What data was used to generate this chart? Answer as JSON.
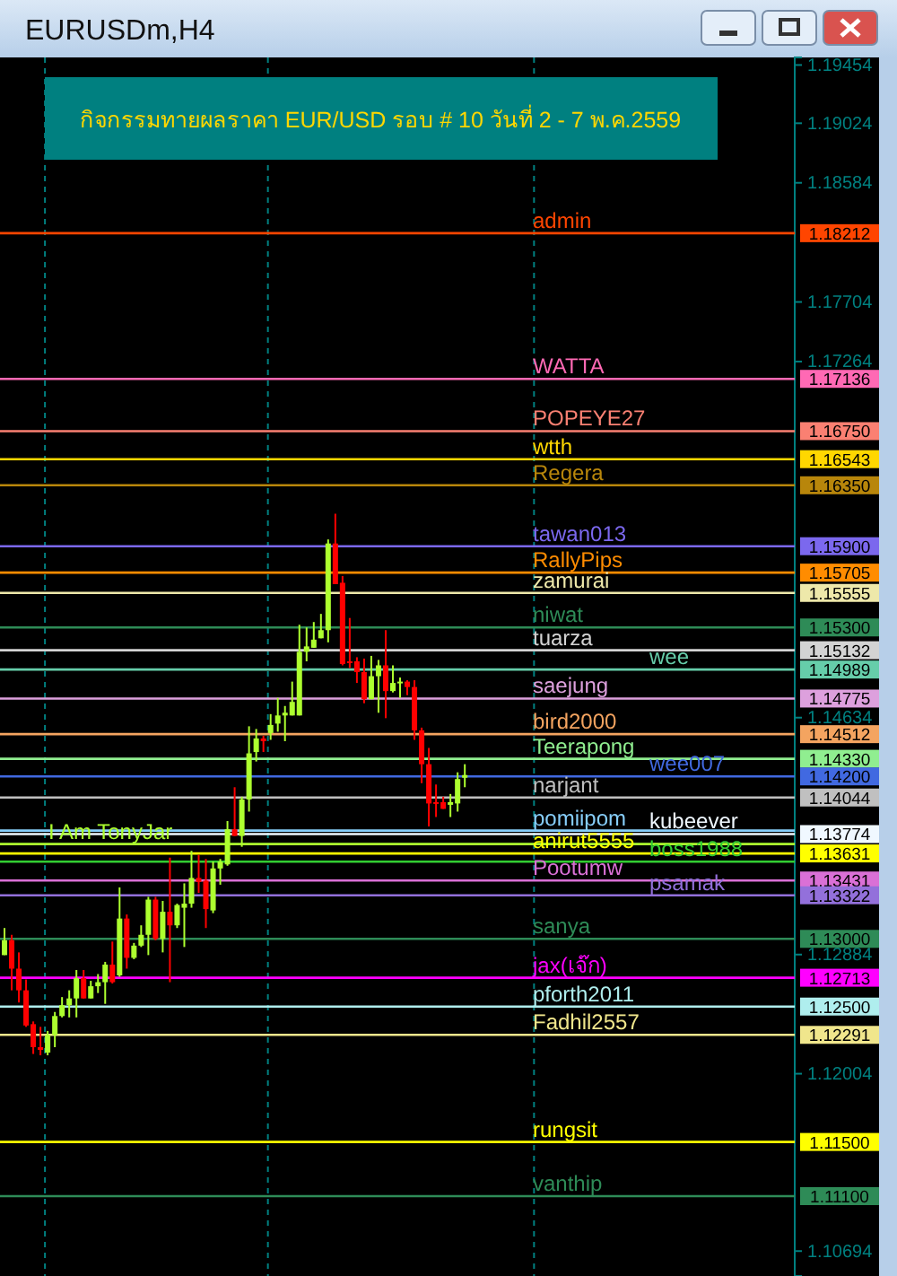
{
  "chart_data": {
    "type": "candlestick",
    "title": "กิจกรรมทายผลราคา EUR/USD รอบ # 10 วันที่ 2 - 7 พ.ค.2559",
    "subtitle": "EURUSDm,H4",
    "categories": [
      null,
      null,
      null,
      null,
      null,
      null,
      null,
      null,
      null,
      null,
      null,
      null,
      null,
      null,
      null,
      null,
      null,
      null,
      null,
      null,
      null,
      null,
      null,
      null,
      null,
      null,
      null,
      null,
      null,
      null,
      null,
      null,
      null,
      null,
      null,
      null,
      null,
      null,
      null,
      null,
      null,
      null,
      null,
      null,
      null,
      null,
      null,
      null,
      null,
      null,
      null,
      null,
      null,
      null,
      null,
      null,
      null,
      null,
      null,
      null,
      null,
      null,
      null,
      null,
      null,
      null,
      null,
      null,
      null,
      null,
      null,
      null,
      null,
      null,
      null,
      null,
      null,
      null,
      null,
      null,
      null,
      null,
      null,
      null,
      null,
      null,
      null,
      null,
      null,
      null,
      null,
      null,
      null,
      null,
      null,
      null,
      null,
      null,
      null,
      null,
      null,
      null,
      null,
      null,
      null,
      null,
      null,
      null,
      null,
      null
    ],
    "ohlc": [
      [
        1.1288,
        1.1308,
        1.1288,
        1.1299
      ],
      [
        1.1299,
        1.1303,
        1.1262,
        1.1278
      ],
      [
        1.1278,
        1.129,
        1.1253,
        1.1262
      ],
      [
        1.1262,
        1.127,
        1.1235,
        1.1236
      ],
      [
        1.1237,
        1.1239,
        1.1215,
        1.122
      ],
      [
        1.122,
        1.1235,
        1.1214,
        1.1218
      ],
      [
        1.1216,
        1.1232,
        1.1214,
        1.1229
      ],
      [
        1.1229,
        1.1246,
        1.122,
        1.1243
      ],
      [
        1.1243,
        1.1257,
        1.1242,
        1.1251
      ],
      [
        1.1251,
        1.1262,
        1.1242,
        1.1256
      ],
      [
        1.1256,
        1.1277,
        1.1242,
        1.1271
      ],
      [
        1.1271,
        1.1277,
        1.1256,
        1.1256
      ],
      [
        1.1256,
        1.1269,
        1.1256,
        1.1265
      ],
      [
        1.1265,
        1.1274,
        1.126,
        1.1268
      ],
      [
        1.1268,
        1.1283,
        1.1252,
        1.1281
      ],
      [
        1.1281,
        1.1298,
        1.1267,
        1.1268
      ],
      [
        1.1273,
        1.1338,
        1.1272,
        1.1315
      ],
      [
        1.1315,
        1.1318,
        1.1278,
        1.1286
      ],
      [
        1.1286,
        1.1297,
        1.1285,
        1.1295
      ],
      [
        1.1295,
        1.131,
        1.1294,
        1.1303
      ],
      [
        1.1303,
        1.1331,
        1.1288,
        1.1329
      ],
      [
        1.1329,
        1.1331,
        1.1299,
        1.13
      ],
      [
        1.13,
        1.1328,
        1.129,
        1.132
      ],
      [
        1.132,
        1.136,
        1.1268,
        1.131
      ],
      [
        1.131,
        1.1326,
        1.1308,
        1.1325
      ],
      [
        1.1323,
        1.1341,
        1.1294,
        1.1326
      ],
      [
        1.1326,
        1.1365,
        1.1323,
        1.1345
      ],
      [
        1.1345,
        1.1362,
        1.1334,
        1.1342
      ],
      [
        1.1343,
        1.1359,
        1.1308,
        1.1322
      ],
      [
        1.1321,
        1.1357,
        1.1319,
        1.1352
      ],
      [
        1.1352,
        1.1359,
        1.134,
        1.1357
      ],
      [
        1.1355,
        1.1387,
        1.1354,
        1.1381
      ],
      [
        1.1381,
        1.1412,
        1.1376,
        1.1376
      ],
      [
        1.1376,
        1.1405,
        1.1368,
        1.1403
      ],
      [
        1.1403,
        1.1457,
        1.1394,
        1.1437
      ],
      [
        1.1438,
        1.1455,
        1.1431,
        1.1448
      ],
      [
        1.1448,
        1.145,
        1.1438,
        1.1446
      ],
      [
        1.1452,
        1.1466,
        1.1447,
        1.1458
      ],
      [
        1.1459,
        1.1478,
        1.1453,
        1.1465
      ],
      [
        1.1465,
        1.1472,
        1.1446,
        1.1467
      ],
      [
        1.1465,
        1.149,
        1.1465,
        1.1475
      ],
      [
        1.1465,
        1.1532,
        1.1465,
        1.1512
      ],
      [
        1.1512,
        1.153,
        1.1505,
        1.1516
      ],
      [
        1.1515,
        1.1534,
        1.1515,
        1.1521
      ],
      [
        1.1522,
        1.154,
        1.1522,
        1.1528
      ],
      [
        1.1528,
        1.1595,
        1.1519,
        1.1592
      ],
      [
        1.1592,
        1.1614,
        1.1562,
        1.1562
      ],
      [
        1.1563,
        1.1568,
        1.1502,
        1.1503
      ],
      [
        1.1505,
        1.1537,
        1.15,
        1.1504
      ],
      [
        1.1505,
        1.1508,
        1.1489,
        1.1497
      ],
      [
        1.1497,
        1.1507,
        1.1474,
        1.1477
      ],
      [
        1.1477,
        1.1509,
        1.1477,
        1.1494
      ],
      [
        1.1494,
        1.1506,
        1.1467,
        1.1502
      ],
      [
        1.1502,
        1.1528,
        1.1463,
        1.1483
      ],
      [
        1.1483,
        1.1502,
        1.1482,
        1.1489
      ],
      [
        1.1489,
        1.1493,
        1.1478,
        1.149
      ],
      [
        1.149,
        1.1491,
        1.148,
        1.1486
      ],
      [
        1.1486,
        1.1491,
        1.1447,
        1.1454
      ],
      [
        1.1454,
        1.1456,
        1.1415,
        1.1429
      ],
      [
        1.1429,
        1.1441,
        1.1383,
        1.14
      ],
      [
        1.1401,
        1.1414,
        1.139,
        1.14
      ],
      [
        1.1401,
        1.1405,
        1.1396,
        1.1396
      ],
      [
        1.1399,
        1.1407,
        1.139,
        1.1401
      ],
      [
        1.14,
        1.1423,
        1.1394,
        1.1418
      ],
      [
        1.1419,
        1.1429,
        1.1412,
        1.1421
      ],
      null,
      null,
      null,
      null,
      null,
      null,
      null,
      null,
      null,
      null,
      null,
      null,
      null,
      null,
      null,
      null,
      null,
      null,
      null,
      null,
      null,
      null,
      null,
      null,
      null,
      null,
      null,
      null,
      null,
      null,
      null,
      null,
      null,
      null,
      null,
      null,
      null,
      null,
      null,
      null,
      null,
      null,
      null,
      null,
      null
    ],
    "ylim": [
      1.1051,
      1.1951
    ],
    "yticks": [
      1.19454,
      1.19024,
      1.18584,
      1.17704,
      1.17264,
      1.14634,
      1.12884,
      1.12004,
      1.10694
    ],
    "tick_labels": "y",
    "ref_lines": [
      {
        "axis": "y",
        "value": 1.18212,
        "label": "1.18212",
        "color": "#ff4500"
      },
      {
        "axis": "y",
        "value": 1.17136,
        "label": "1.17136",
        "color": "#ff69b4"
      },
      {
        "axis": "y",
        "value": 1.1675,
        "label": "1.16750",
        "color": "#fa8072"
      },
      {
        "axis": "y",
        "value": 1.16543,
        "label": "1.16543",
        "color": "#ffd700"
      },
      {
        "axis": "y",
        "value": 1.1635,
        "label": "1.16350",
        "color": "#b8860b"
      },
      {
        "axis": "y",
        "value": 1.159,
        "label": "1.15900",
        "color": "#7b68ee"
      },
      {
        "axis": "y",
        "value": 1.15705,
        "label": "1.15705",
        "color": "#ff8c00"
      },
      {
        "axis": "y",
        "value": 1.15555,
        "label": "1.15555",
        "color": "#eee8aa"
      },
      {
        "axis": "y",
        "value": 1.153,
        "label": "1.15300",
        "color": "#2e8b57"
      },
      {
        "axis": "y",
        "value": 1.15132,
        "label": "1.15132",
        "color": "#d3d3d3"
      },
      {
        "axis": "y",
        "value": 1.14989,
        "label": "1.14989",
        "color": "#66cdaa"
      },
      {
        "axis": "y",
        "value": 1.14775,
        "label": "1.14775",
        "color": "#dda0dd"
      },
      {
        "axis": "y",
        "value": 1.14512,
        "label": "1.14512",
        "color": "#f4a460"
      },
      {
        "axis": "y",
        "value": 1.1433,
        "label": "1.14330",
        "color": "#90ee90"
      },
      {
        "axis": "y",
        "value": 1.142,
        "label": "1.14200",
        "color": "#4169e1"
      },
      {
        "axis": "y",
        "value": 1.14044,
        "label": "1.14044",
        "color": "#c0c0c0"
      },
      {
        "axis": "y",
        "value": 1.138,
        "color": "#87cefa"
      },
      {
        "axis": "y",
        "value": 1.13774,
        "label": "1.13774",
        "color": "#f0f8ff"
      },
      {
        "axis": "y",
        "value": 1.137,
        "color": "#adff2f"
      },
      {
        "axis": "y",
        "value": 1.13631,
        "label": "1.13631",
        "color": "#ffff00"
      },
      {
        "axis": "y",
        "value": 1.1357,
        "color": "#32cd32"
      },
      {
        "axis": "y",
        "value": 1.13431,
        "label": "1.13431",
        "color": "#da70d6"
      },
      {
        "axis": "y",
        "value": 1.13322,
        "label": "1.13322",
        "color": "#9370db"
      },
      {
        "axis": "y",
        "value": 1.13,
        "label": "1.13000",
        "color": "#2e8b57"
      },
      {
        "axis": "y",
        "value": 1.12713,
        "label": "1.12713",
        "color": "#ff00ff"
      },
      {
        "axis": "y",
        "value": 1.125,
        "label": "1.12500",
        "color": "#afeeee"
      },
      {
        "axis": "y",
        "value": 1.12291,
        "label": "1.12291",
        "color": "#f0e68c"
      },
      {
        "axis": "y",
        "value": 1.115,
        "label": "1.11500",
        "color": "#ffff00"
      },
      {
        "axis": "y",
        "value": 1.111,
        "label": "1.11100",
        "color": "#2e8b57"
      }
    ],
    "annotations": [
      {
        "text": "admin",
        "y": 1.18212
      },
      {
        "text": "WATTA",
        "y": 1.17136
      },
      {
        "text": "POPEYE27",
        "y": 1.1675
      },
      {
        "text": "wtth",
        "y": 1.16543
      },
      {
        "text": "Regera",
        "y": 1.1635
      },
      {
        "text": "tawan013",
        "y": 1.159
      },
      {
        "text": "RallyPips",
        "y": 1.15705
      },
      {
        "text": "zamurai",
        "y": 1.15555
      },
      {
        "text": "niwat",
        "y": 1.153
      },
      {
        "text": "tuarza",
        "y": 1.15132
      },
      {
        "text": "wee",
        "y": 1.14989
      },
      {
        "text": "saejung",
        "y": 1.14775
      },
      {
        "text": "bird2000",
        "y": 1.14512
      },
      {
        "text": "Teerapong",
        "y": 1.1433
      },
      {
        "text": "wee007",
        "y": 1.142
      },
      {
        "text": "narjant",
        "y": 1.14044
      },
      {
        "text": "pomiipom",
        "y": 1.138
      },
      {
        "text": "kubeever",
        "y": 1.13774
      },
      {
        "text": "Pootumw",
        "y": 1.13431
      },
      {
        "text": "psamak",
        "y": 1.13322
      },
      {
        "text": "boss1988",
        "y": 1.1357
      },
      {
        "text": "anirut5555",
        "y": 1.13631
      },
      {
        "text": "I Am TonyJar",
        "y": 1.137
      },
      {
        "text": "sanya",
        "y": 1.13
      },
      {
        "text": "jax(เจ๊ก)",
        "y": 1.12713
      },
      {
        "text": "pforth2011",
        "y": 1.125
      },
      {
        "text": "Fadhil2557",
        "y": 1.12291
      },
      {
        "text": "rungsit",
        "y": 1.115
      },
      {
        "text": "vanthip",
        "y": 1.111
      }
    ]
  }
}
